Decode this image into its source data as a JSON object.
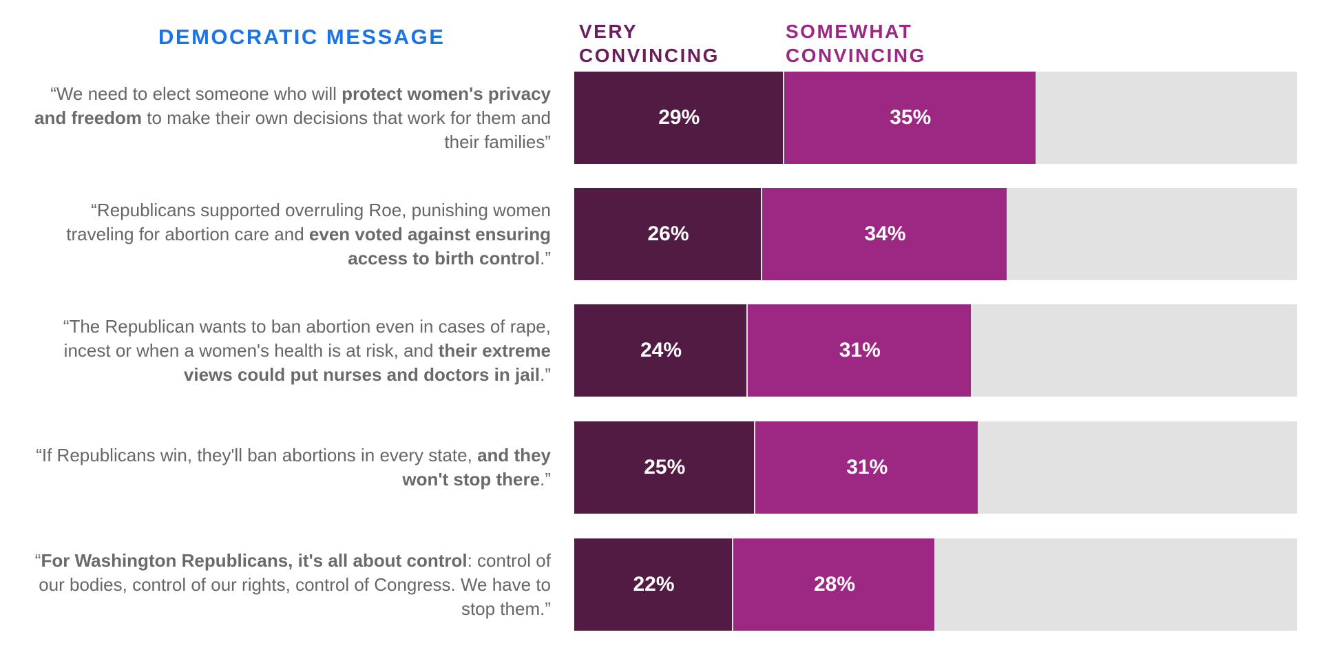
{
  "header": {
    "column_title": "DEMOCRATIC MESSAGE",
    "legend": [
      {
        "label": "VERY\nCONVINCING",
        "color": "#521b44"
      },
      {
        "label": "SOMEWHAT\nCONVINCING",
        "color": "#9c2884"
      }
    ]
  },
  "colors": {
    "very": "#521b44",
    "somewhat": "#9c2884",
    "remainder": "#e2e2e2",
    "title": "#1a73e8",
    "legend_very_text": "#6b1d5c",
    "legend_somewhat_text": "#9c2884"
  },
  "messages": [
    {
      "parts": [
        {
          "t": "“We need to elect someone who will ",
          "b": false
        },
        {
          "t": "protect women's privacy and freedom",
          "b": true
        },
        {
          "t": " to make their own decisions that work for them and their families”",
          "b": false
        }
      ]
    },
    {
      "parts": [
        {
          "t": "“Republicans supported overruling Roe, punishing women traveling for abortion care and ",
          "b": false
        },
        {
          "t": "even voted against ensuring access to birth control",
          "b": true
        },
        {
          "t": ".”",
          "b": false
        }
      ]
    },
    {
      "parts": [
        {
          "t": "“The Republican wants to ban abortion even in cases of rape, incest or when a women's health is at risk, and ",
          "b": false
        },
        {
          "t": "their extreme views could put nurses and doctors in jail",
          "b": true
        },
        {
          "t": ".”",
          "b": false
        }
      ]
    },
    {
      "parts": [
        {
          "t": "“If Republicans win, they'll ban abortions in every state, ",
          "b": false
        },
        {
          "t": "and they won't stop there",
          "b": true
        },
        {
          "t": ".”",
          "b": false
        }
      ]
    },
    {
      "parts": [
        {
          "t": "“",
          "b": false
        },
        {
          "t": "For Washington Republicans, it's all about control",
          "b": true
        },
        {
          "t": ": control of our bodies, control of our rights, control of Congress. We have to stop them.”",
          "b": false
        }
      ]
    }
  ],
  "chart_data": {
    "type": "bar",
    "orientation": "horizontal",
    "stacked": true,
    "title": "",
    "xlim": [
      0,
      100
    ],
    "categories": [
      "“We need to elect someone who will protect women's privacy and freedom to make their own decisions that work for them and their families”",
      "“Republicans supported overruling Roe, punishing women traveling for abortion care and even voted against ensuring access to birth control.”",
      "“The Republican wants to ban abortion even in cases of rape, incest or when a women's health is at risk, and their extreme views could put nurses and doctors in jail.”",
      "“If Republicans win, they'll ban abortions in every state, and they won't stop there.”",
      "“For Washington Republicans, it's all about control: control of our bodies, control of our rights, control of Congress. We have to stop them.”"
    ],
    "series": [
      {
        "name": "VERY CONVINCING",
        "values": [
          29,
          26,
          24,
          25,
          22
        ],
        "labels": [
          "29%",
          "26%",
          "24%",
          "25%",
          "22%"
        ]
      },
      {
        "name": "SOMEWHAT CONVINCING",
        "values": [
          35,
          34,
          31,
          31,
          28
        ],
        "labels": [
          "35%",
          "34%",
          "31%",
          "31%",
          "28%"
        ]
      }
    ]
  }
}
